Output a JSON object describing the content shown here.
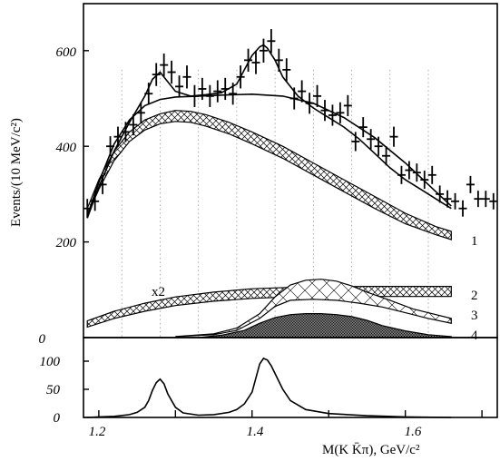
{
  "chart_data": [
    {
      "type": "scatter",
      "title": "",
      "ylabel": "Events/(10 MeV/c²)",
      "xlabel": "",
      "xlim": [
        1.18,
        1.72
      ],
      "ylim": [
        0,
        700
      ],
      "x_ticks": [
        1.2,
        1.4,
        1.6
      ],
      "y_ticks": [
        0,
        200,
        400,
        600
      ],
      "y_tick_labels": [
        "0",
        "200",
        "400",
        "600"
      ],
      "grid": "vertical dotted lines",
      "annotation": "x2",
      "series": [
        {
          "kind": "data points with error bars",
          "x": [
            1.185,
            1.195,
            1.205,
            1.215,
            1.225,
            1.235,
            1.245,
            1.255,
            1.265,
            1.275,
            1.285,
            1.295,
            1.305,
            1.315,
            1.325,
            1.335,
            1.345,
            1.355,
            1.365,
            1.375,
            1.385,
            1.395,
            1.405,
            1.415,
            1.425,
            1.435,
            1.445,
            1.455,
            1.465,
            1.475,
            1.485,
            1.495,
            1.505,
            1.515,
            1.525,
            1.535,
            1.545,
            1.555,
            1.565,
            1.575,
            1.585,
            1.595,
            1.605,
            1.615,
            1.625,
            1.635,
            1.645,
            1.655,
            1.665,
            1.675,
            1.685,
            1.695,
            1.705,
            1.715
          ],
          "y": [
            270,
            285,
            320,
            400,
            420,
            430,
            445,
            470,
            510,
            550,
            570,
            555,
            525,
            545,
            505,
            520,
            505,
            515,
            520,
            510,
            545,
            580,
            575,
            600,
            620,
            580,
            560,
            500,
            515,
            490,
            505,
            475,
            465,
            470,
            485,
            410,
            440,
            415,
            400,
            380,
            420,
            340,
            350,
            345,
            330,
            340,
            300,
            290,
            285,
            270,
            320,
            290,
            290,
            285
          ],
          "error": [
            20,
            20,
            20,
            21,
            21,
            21,
            22,
            22,
            23,
            24,
            24,
            24,
            23,
            24,
            23,
            23,
            23,
            23,
            23,
            23,
            24,
            24,
            24,
            25,
            25,
            24,
            24,
            23,
            23,
            22,
            23,
            22,
            22,
            22,
            22,
            20,
            21,
            21,
            20,
            20,
            21,
            19,
            19,
            19,
            19,
            19,
            18,
            18,
            17,
            17,
            18,
            17,
            17,
            17
          ]
        },
        {
          "name": "1",
          "kind": "total fit curve",
          "x": [
            1.185,
            1.2,
            1.22,
            1.24,
            1.26,
            1.27,
            1.28,
            1.29,
            1.3,
            1.32,
            1.34,
            1.36,
            1.38,
            1.39,
            1.4,
            1.41,
            1.415,
            1.42,
            1.43,
            1.44,
            1.46,
            1.48,
            1.5,
            1.52,
            1.54,
            1.56,
            1.58,
            1.6,
            1.62,
            1.64,
            1.66
          ],
          "y": [
            250,
            315,
            390,
            450,
            505,
            540,
            555,
            535,
            515,
            505,
            508,
            512,
            530,
            560,
            590,
            608,
            612,
            605,
            580,
            545,
            505,
            480,
            460,
            440,
            415,
            385,
            355,
            330,
            310,
            290,
            270
          ]
        },
        {
          "kind": "background fit curve",
          "x": [
            1.185,
            1.2,
            1.22,
            1.24,
            1.26,
            1.28,
            1.3,
            1.33,
            1.36,
            1.4,
            1.44,
            1.48,
            1.52,
            1.56,
            1.6,
            1.64,
            1.66
          ],
          "y": [
            255,
            325,
            405,
            455,
            485,
            498,
            503,
            505,
            507,
            509,
            505,
            490,
            460,
            418,
            365,
            305,
            275
          ]
        },
        {
          "kind": "hatched band (top)",
          "x": [
            1.185,
            1.2,
            1.22,
            1.24,
            1.26,
            1.28,
            1.3,
            1.32,
            1.34,
            1.37,
            1.4,
            1.44,
            1.48,
            1.52,
            1.56,
            1.6,
            1.64,
            1.66
          ],
          "y": [
            270,
            330,
            390,
            430,
            455,
            468,
            475,
            473,
            466,
            450,
            430,
            400,
            365,
            330,
            295,
            260,
            232,
            222
          ]
        },
        {
          "kind": "hatched band (bottom)",
          "x": [
            1.185,
            1.2,
            1.22,
            1.24,
            1.26,
            1.28,
            1.3,
            1.32,
            1.34,
            1.37,
            1.4,
            1.44,
            1.48,
            1.52,
            1.56,
            1.6,
            1.64,
            1.66
          ],
          "y": [
            255,
            310,
            370,
            410,
            434,
            447,
            452,
            450,
            442,
            426,
            405,
            375,
            340,
            305,
            270,
            238,
            215,
            205
          ]
        },
        {
          "name": "2",
          "kind": "hatched band (top)",
          "x": [
            1.185,
            1.22,
            1.26,
            1.3,
            1.35,
            1.4,
            1.45,
            1.5,
            1.55,
            1.6,
            1.66
          ],
          "y": [
            35,
            55,
            72,
            85,
            95,
            102,
            105,
            106,
            107,
            107,
            107
          ]
        },
        {
          "name": "2",
          "kind": "hatched band (bottom)",
          "x": [
            1.185,
            1.22,
            1.26,
            1.3,
            1.35,
            1.4,
            1.45,
            1.5,
            1.55,
            1.6,
            1.66
          ],
          "y": [
            22,
            40,
            55,
            67,
            76,
            82,
            85,
            86,
            86,
            86,
            86
          ]
        },
        {
          "name": "3",
          "kind": "curve",
          "x": [
            1.3,
            1.35,
            1.38,
            1.41,
            1.43,
            1.45,
            1.47,
            1.49,
            1.51,
            1.53,
            1.55,
            1.58,
            1.61,
            1.66
          ],
          "y": [
            2,
            8,
            20,
            50,
            85,
            110,
            120,
            122,
            118,
            108,
            95,
            78,
            60,
            40
          ]
        },
        {
          "name": "3",
          "kind": "curve",
          "x": [
            1.3,
            1.35,
            1.38,
            1.41,
            1.43,
            1.45,
            1.48,
            1.51,
            1.54,
            1.57,
            1.6,
            1.63,
            1.66
          ],
          "y": [
            2,
            6,
            15,
            40,
            65,
            78,
            80,
            78,
            72,
            64,
            52,
            40,
            30
          ]
        },
        {
          "name": "4",
          "kind": "cross-hatched filled area",
          "x": [
            1.33,
            1.36,
            1.39,
            1.41,
            1.43,
            1.45,
            1.47,
            1.49,
            1.51,
            1.53,
            1.55,
            1.57,
            1.6,
            1.63,
            1.66
          ],
          "y": [
            0,
            5,
            15,
            30,
            42,
            48,
            50,
            50,
            48,
            44,
            36,
            25,
            14,
            6,
            2
          ]
        }
      ],
      "curve_labels": [
        "1",
        "2",
        "3",
        "4"
      ]
    },
    {
      "type": "line",
      "title": "",
      "xlabel": "M(K K̄π), GeV/c²",
      "ylabel": "",
      "xlim": [
        1.18,
        1.72
      ],
      "ylim": [
        0,
        140
      ],
      "x_ticks": [
        1.2,
        1.4,
        1.6
      ],
      "x_tick_labels": [
        "1.2",
        "1.4",
        "1.6"
      ],
      "y_ticks": [
        0,
        50,
        100
      ],
      "y_tick_labels": [
        "0",
        "50",
        "100"
      ],
      "series": [
        {
          "kind": "line",
          "x": [
            1.185,
            1.2,
            1.22,
            1.24,
            1.25,
            1.26,
            1.265,
            1.27,
            1.275,
            1.28,
            1.285,
            1.29,
            1.3,
            1.31,
            1.33,
            1.35,
            1.37,
            1.38,
            1.39,
            1.4,
            1.405,
            1.41,
            1.415,
            1.42,
            1.425,
            1.43,
            1.44,
            1.45,
            1.47,
            1.5,
            1.55,
            1.6,
            1.66
          ],
          "y": [
            0,
            1,
            2,
            5,
            9,
            18,
            30,
            48,
            62,
            68,
            60,
            42,
            18,
            8,
            4,
            5,
            9,
            14,
            24,
            45,
            70,
            95,
            105,
            102,
            92,
            78,
            50,
            30,
            14,
            7,
            3,
            1,
            0
          ]
        }
      ]
    }
  ]
}
